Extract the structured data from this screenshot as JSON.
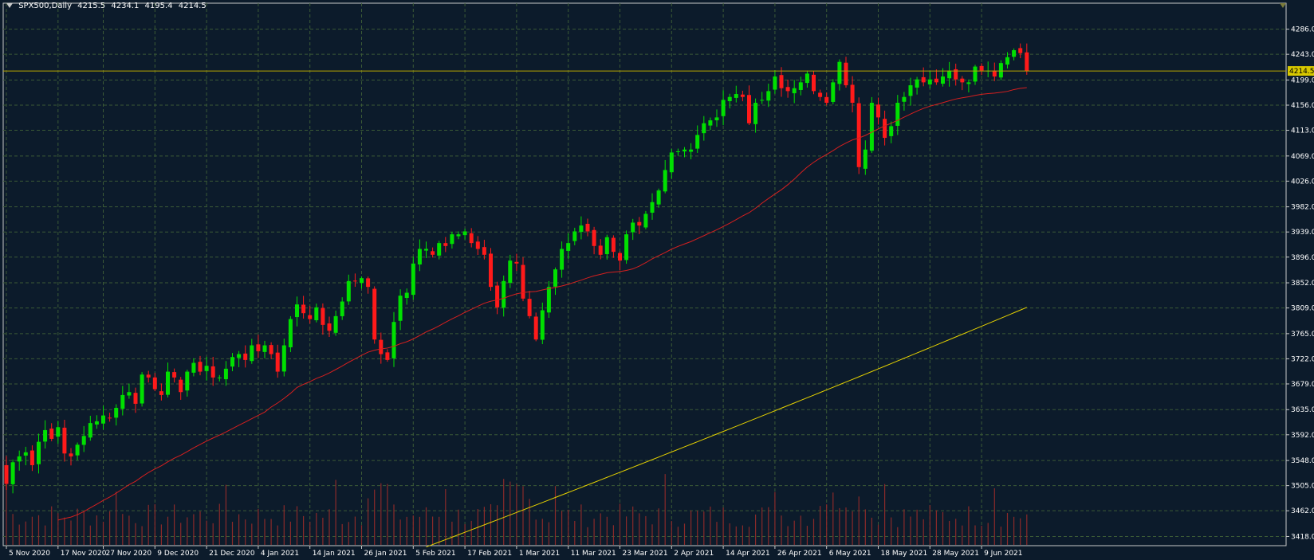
{
  "header": {
    "symbol_timeframe": "SPX500,Daily",
    "open": "4215.5",
    "high": "4234.1",
    "low": "4195.4",
    "close": "4214.5"
  },
  "colors": {
    "background": "#0c1b2b",
    "grid": "#3b5a36",
    "bull": "#00e000",
    "bear": "#ff1a1a",
    "ma_fast": "#d61f1f",
    "ma_slow": "#e6d200",
    "volume": "#8a2a2a",
    "axis_text": "#ffffff",
    "price_line": "#b8a600",
    "current_price_label_bg": "#d8c800"
  },
  "chart_data": {
    "type": "candlestick",
    "ylim": [
      3405,
      4310
    ],
    "current_price": "4214.5",
    "y_ticks": [
      "4286.0",
      "4243.0",
      "4199.0",
      "4156.0",
      "4113.0",
      "4069.0",
      "4026.0",
      "3982.0",
      "3939.0",
      "3896.0",
      "3852.0",
      "3809.0",
      "3765.0",
      "3722.0",
      "3679.0",
      "3635.0",
      "3592.0",
      "3548.0",
      "3505.0",
      "3462.0",
      "3418.0"
    ],
    "x_labels": [
      {
        "label": "5 Nov 2020",
        "index": 0
      },
      {
        "label": "17 Nov 2020",
        "index": 8
      },
      {
        "label": "27 Nov 2020",
        "index": 15
      },
      {
        "label": "9 Dec 2020",
        "index": 23
      },
      {
        "label": "21 Dec 2020",
        "index": 31
      },
      {
        "label": "4 Jan 2021",
        "index": 39
      },
      {
        "label": "14 Jan 2021",
        "index": 47
      },
      {
        "label": "26 Jan 2021",
        "index": 55
      },
      {
        "label": "5 Feb 2021",
        "index": 63
      },
      {
        "label": "17 Feb 2021",
        "index": 71
      },
      {
        "label": "1 Mar 2021",
        "index": 79
      },
      {
        "label": "11 Mar 2021",
        "index": 87
      },
      {
        "label": "23 Mar 2021",
        "index": 95
      },
      {
        "label": "2 Apr 2021",
        "index": 103
      },
      {
        "label": "14 Apr 2021",
        "index": 111
      },
      {
        "label": "26 Apr 2021",
        "index": 119
      },
      {
        "label": "6 May 2021",
        "index": 127
      },
      {
        "label": "18 May 2021",
        "index": 135
      },
      {
        "label": "28 May 2021",
        "index": 143
      },
      {
        "label": "9 Jun 2021",
        "index": 151
      }
    ],
    "close": [
      3508,
      3545,
      3555,
      3562,
      3540,
      3580,
      3600,
      3585,
      3605,
      3560,
      3555,
      3575,
      3590,
      3612,
      3615,
      3625,
      3620,
      3638,
      3660,
      3665,
      3645,
      3695,
      3690,
      3670,
      3660,
      3700,
      3690,
      3665,
      3700,
      3715,
      3700,
      3710,
      3690,
      3690,
      3705,
      3725,
      3730,
      3720,
      3745,
      3735,
      3745,
      3730,
      3700,
      3745,
      3790,
      3815,
      3800,
      3790,
      3810,
      3780,
      3770,
      3795,
      3820,
      3855,
      3855,
      3860,
      3845,
      3755,
      3730,
      3720,
      3785,
      3830,
      3835,
      3885,
      3910,
      3910,
      3900,
      3920,
      3915,
      3935,
      3935,
      3940,
      3920,
      3910,
      3900,
      3845,
      3810,
      3855,
      3890,
      3885,
      3825,
      3795,
      3755,
      3805,
      3845,
      3875,
      3910,
      3920,
      3940,
      3950,
      3940,
      3915,
      3900,
      3930,
      3905,
      3890,
      3935,
      3955,
      3950,
      3970,
      3990,
      4010,
      4045,
      4075,
      4077,
      4080,
      4080,
      4105,
      4125,
      4130,
      4135,
      4165,
      4170,
      4175,
      4170,
      4125,
      4160,
      4165,
      4180,
      4205,
      4185,
      4180,
      4185,
      4195,
      4210,
      4180,
      4170,
      4160,
      4195,
      4230,
      4190,
      4160,
      4050,
      4080,
      4160,
      4135,
      4100,
      4120,
      4160,
      4170,
      4190,
      4200,
      4195,
      4200,
      4195,
      4205,
      4215,
      4200,
      4195,
      4195,
      4222,
      4215,
      4215,
      4205,
      4228,
      4238,
      4250,
      4245,
      4214
    ]
  }
}
